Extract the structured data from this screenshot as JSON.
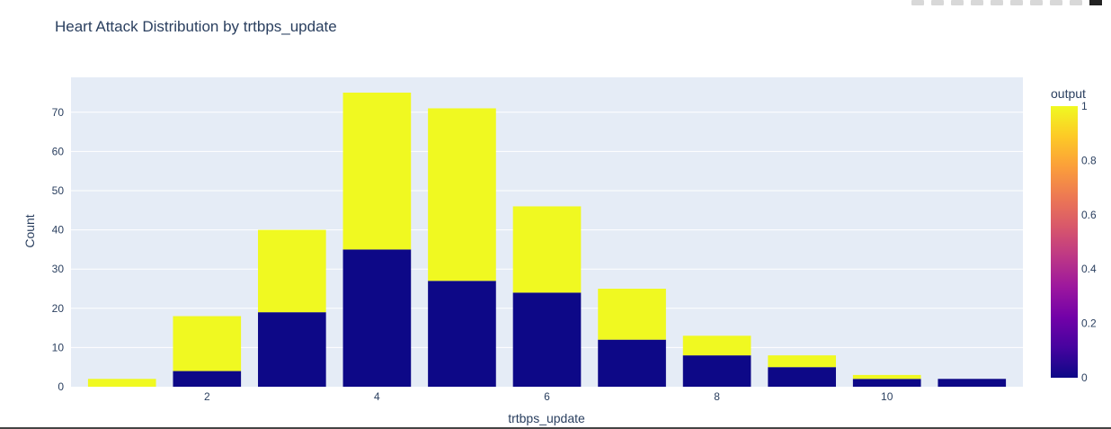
{
  "chart_data": {
    "type": "bar",
    "barmode": "stack",
    "title": "Heart Attack Distribution by trtbps_update",
    "xlabel": "trtbps_update",
    "ylabel": "Count",
    "x": [
      1,
      2,
      3,
      4,
      5,
      6,
      7,
      8,
      9,
      10,
      11
    ],
    "series": [
      {
        "output": 0,
        "color": "#0d0887",
        "values": [
          0,
          4,
          19,
          35,
          27,
          24,
          12,
          8,
          5,
          2,
          2
        ]
      },
      {
        "output": 1,
        "color": "#f0f921",
        "values": [
          2,
          14,
          21,
          40,
          44,
          22,
          13,
          5,
          3,
          1,
          0
        ]
      }
    ],
    "xticks": [
      2,
      4,
      6,
      8,
      10
    ],
    "yticks": [
      0,
      10,
      20,
      30,
      40,
      50,
      60,
      70
    ],
    "ylim": [
      0,
      78.9
    ],
    "xlim": [
      0.4,
      11.6
    ],
    "grid": true,
    "plot_bgcolor": "#e5ecf6",
    "colorbar": {
      "title": "output",
      "ticks": [
        0,
        0.2,
        0.4,
        0.6,
        0.8,
        1
      ],
      "colorscale": [
        "#0d0887",
        "#46039f",
        "#7201a8",
        "#9c179e",
        "#bd3786",
        "#d8576b",
        "#ed7953",
        "#fb9f3a",
        "#fdca26",
        "#f0f921"
      ]
    }
  }
}
